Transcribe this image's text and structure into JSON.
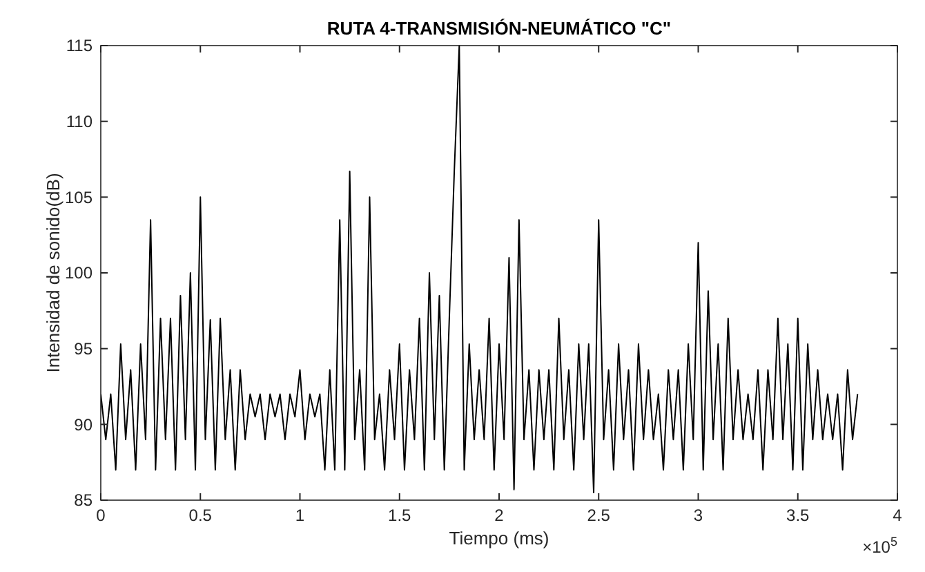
{
  "chart_data": {
    "type": "line",
    "title": "RUTA 4-TRANSMISIÓN-NEUMÁTICO \"C\"",
    "xlabel": "Tiempo (ms)",
    "ylabel": "Intensidad de sonido(dB)",
    "annotations": [
      "×10$^{5}$"
    ],
    "xlim": [
      0,
      4
    ],
    "ylim": [
      85,
      115
    ],
    "xticks": [
      0,
      0.5,
      1,
      1.5,
      2,
      2.5,
      3,
      3.5,
      4
    ],
    "yticks": [
      85,
      90,
      95,
      100,
      105,
      110,
      115
    ],
    "line_style": "solid",
    "x": [
      0,
      0.025,
      0.05,
      0.075,
      0.1,
      0.125,
      0.15,
      0.175,
      0.2,
      0.225,
      0.25,
      0.275,
      0.3,
      0.325,
      0.35,
      0.375,
      0.4,
      0.425,
      0.45,
      0.475,
      0.5,
      0.525,
      0.55,
      0.575,
      0.6,
      0.625,
      0.65,
      0.675,
      0.7,
      0.725,
      0.75,
      0.775,
      0.8,
      0.825,
      0.85,
      0.875,
      0.9,
      0.925,
      0.95,
      0.975,
      1,
      1.025,
      1.05,
      1.075,
      1.1,
      1.125,
      1.15,
      1.175,
      1.2,
      1.225,
      1.25,
      1.275,
      1.3,
      1.325,
      1.35,
      1.375,
      1.4,
      1.425,
      1.45,
      1.475,
      1.5,
      1.525,
      1.55,
      1.575,
      1.6,
      1.625,
      1.65,
      1.675,
      1.7,
      1.725,
      1.75,
      1.775,
      1.8,
      1.825,
      1.85,
      1.875,
      1.9,
      1.925,
      1.95,
      1.975,
      2,
      2.025,
      2.05,
      2.075,
      2.1,
      2.125,
      2.15,
      2.175,
      2.2,
      2.225,
      2.25,
      2.275,
      2.3,
      2.325,
      2.35,
      2.375,
      2.4,
      2.425,
      2.45,
      2.475,
      2.5,
      2.525,
      2.55,
      2.575,
      2.6,
      2.625,
      2.65,
      2.675,
      2.7,
      2.725,
      2.75,
      2.775,
      2.8,
      2.825,
      2.85,
      2.875,
      2.9,
      2.925,
      2.95,
      2.975,
      3,
      3.025,
      3.05,
      3.075,
      3.1,
      3.125,
      3.15,
      3.175,
      3.2,
      3.225,
      3.25,
      3.275,
      3.3,
      3.325,
      3.35,
      3.375,
      3.4,
      3.425,
      3.45,
      3.475,
      3.5,
      3.525,
      3.55,
      3.575,
      3.6,
      3.625,
      3.65,
      3.675,
      3.7,
      3.725,
      3.75,
      3.775,
      3.8
    ],
    "series": [
      {
        "color": "#000000",
        "values": [
          92,
          89,
          92,
          87,
          95.3,
          89,
          93.6,
          87,
          95.3,
          89,
          103.5,
          87,
          97,
          89,
          97,
          87,
          98.5,
          89,
          100,
          87,
          105,
          89,
          96.9,
          87,
          97,
          89,
          93.6,
          87,
          93.6,
          89,
          92,
          90.5,
          92,
          89,
          92,
          90.5,
          92,
          89,
          92,
          90.5,
          93.6,
          89,
          92,
          90.5,
          92,
          87,
          93.6,
          87,
          103.5,
          87,
          106.7,
          89,
          93.6,
          87,
          105,
          89,
          92,
          87,
          93.6,
          89,
          95.3,
          87,
          93.6,
          89,
          97,
          87,
          100,
          89,
          98.5,
          87,
          97,
          106.7,
          115,
          87,
          95.3,
          89,
          93.6,
          89,
          97,
          87,
          95.3,
          89,
          101,
          85.7,
          103.5,
          89,
          93.6,
          87,
          93.6,
          89,
          93.6,
          87,
          97,
          89,
          93.6,
          87,
          95.3,
          89,
          95.3,
          85.5,
          103.5,
          89,
          93.6,
          87,
          95.3,
          89,
          93.6,
          87,
          95.3,
          89,
          93.6,
          89,
          92,
          87,
          93.6,
          89,
          93.6,
          87,
          95.3,
          89,
          102,
          87,
          98.8,
          89,
          95.3,
          87,
          97,
          89,
          93.6,
          89,
          92,
          89,
          93.6,
          87,
          93.6,
          89,
          97,
          89,
          95.3,
          87,
          97,
          87,
          95.3,
          89,
          93.6,
          89,
          92,
          89,
          92,
          87,
          93.6,
          89,
          92
        ]
      }
    ]
  }
}
